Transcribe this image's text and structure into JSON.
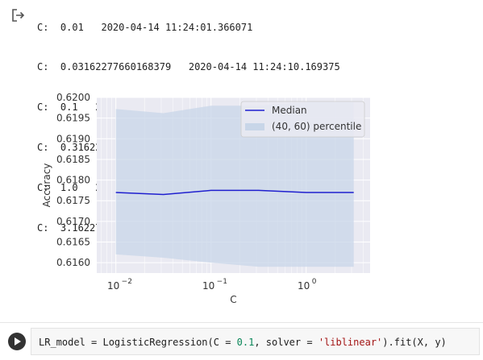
{
  "output": {
    "icon": "output-redirect-icon",
    "log_lines": [
      "C:  0.01   2020-04-14 11:24:01.366071",
      "C:  0.03162277660168379   2020-04-14 11:24:10.169375",
      "C:  0.1   2020-04-14 11:24:18.775032",
      "C:  0.31622776601683794   2020-04-14 11:24:27.451008",
      "C:  1.0   2020-04-14 11:24:36.063854",
      "C:  3.1622776601683795   2020-04-14 11:24:44.727775"
    ]
  },
  "chart_data": {
    "type": "line",
    "xlabel": "C",
    "ylabel": "Accuracy",
    "xscale": "log",
    "xlim": [
      0.0063,
      4.7
    ],
    "ylim": [
      0.61575,
      0.62
    ],
    "yticks": [
      "0.6160",
      "0.6165",
      "0.6170",
      "0.6175",
      "0.6180",
      "0.6185",
      "0.6190",
      "0.6195",
      "0.6200"
    ],
    "xticks": [
      {
        "base": "10",
        "exp": "−2",
        "value": 0.01
      },
      {
        "base": "10",
        "exp": "−1",
        "value": 0.1
      },
      {
        "base": "10",
        "exp": "0",
        "value": 1
      }
    ],
    "grid": true,
    "legend_position": "upper right",
    "x": [
      0.01,
      0.03162277660168379,
      0.1,
      0.31622776601683794,
      1.0,
      3.1622776601683795
    ],
    "series": [
      {
        "name": "Median",
        "values": [
          0.6177,
          0.61765,
          0.61775,
          0.61775,
          0.6177,
          0.6177
        ],
        "color": "#1f1fcf"
      },
      {
        "name": "(40, 60) percentile",
        "lower": [
          0.6162,
          0.61612,
          0.616,
          0.6159,
          0.6159,
          0.6159
        ],
        "upper": [
          0.61972,
          0.61962,
          0.6198,
          0.6198,
          0.61988,
          0.61988
        ],
        "color": "#c8d6e8"
      }
    ],
    "background": "#eaeaf2"
  },
  "code_cell": {
    "run_icon": "play-icon",
    "tokens": [
      {
        "text": "LR_model = LogisticRegression(C = ",
        "cls": ""
      },
      {
        "text": "0.1",
        "cls": "num"
      },
      {
        "text": ", solver = ",
        "cls": ""
      },
      {
        "text": "'liblinear'",
        "cls": "str"
      },
      {
        "text": ").fit(X, y)",
        "cls": ""
      }
    ]
  }
}
